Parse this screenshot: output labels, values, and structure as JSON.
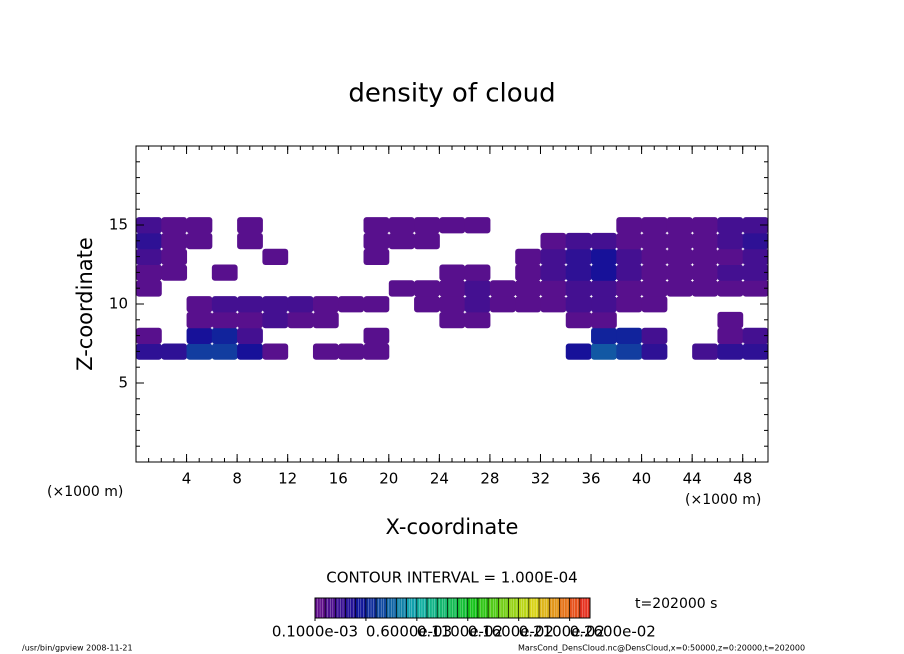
{
  "chart_data": {
    "type": "contour",
    "title": "density of cloud",
    "x_label": "X-coordinate",
    "y_label": "Z-coordinate",
    "x_unit": "(×1000 m)",
    "y_unit": "(×1000 m)",
    "contour_text": "CONTOUR INTERVAL = 1.000E-04",
    "contour_interval": 0.0001,
    "time_text": "t=202000 s",
    "footer_left": "/usr/bin/gpview  2008-11-21",
    "footer_right": "MarsCond_DensCloud.nc@DensCloud,x=0:50000,z=0:20000,t=202000",
    "xlim": [
      0,
      50
    ],
    "ylim": [
      0,
      20
    ],
    "xticks": [
      4,
      8,
      12,
      16,
      20,
      24,
      28,
      32,
      36,
      40,
      44,
      48
    ],
    "yticks": [
      5,
      10,
      15
    ],
    "clim": [
      0.0001,
      0.0028
    ],
    "cticks": [
      {
        "value": 0.0001,
        "label": "0.1000e-03"
      },
      {
        "value": 0.0006,
        "label": "0.6000e-03"
      },
      {
        "value": 0.0011,
        "label": "0.1100e-02"
      },
      {
        "value": 0.0016,
        "label": "0.1600e-02"
      },
      {
        "value": 0.0021,
        "label": "0.2100e-02"
      },
      {
        "value": 0.0026,
        "label": "0.2600e-02"
      }
    ],
    "x": [
      1,
      3,
      5,
      7,
      9,
      11,
      13,
      15,
      17,
      19,
      21,
      23,
      25,
      27,
      29,
      31,
      33,
      35,
      37,
      39,
      41,
      43,
      45,
      47,
      49
    ],
    "z": [
      7,
      8,
      9,
      10,
      11,
      12,
      13,
      14,
      15
    ],
    "values": [
      [
        0.0004,
        0.0004,
        0.0007,
        0.0007,
        0.0005,
        0.0002,
        null,
        0.0002,
        0.0002,
        0.0002,
        null,
        null,
        null,
        null,
        null,
        null,
        null,
        0.0005,
        0.0008,
        0.0007,
        0.0004,
        null,
        0.0003,
        0.0004,
        0.0004
      ],
      [
        0.0002,
        null,
        0.0005,
        0.0006,
        0.0003,
        null,
        null,
        null,
        null,
        0.0002,
        null,
        null,
        null,
        null,
        null,
        null,
        null,
        null,
        0.0006,
        0.0006,
        0.0003,
        null,
        null,
        0.0002,
        0.0003
      ],
      [
        null,
        null,
        0.0002,
        0.0002,
        0.0002,
        0.0003,
        0.0002,
        0.0002,
        null,
        null,
        null,
        null,
        0.0002,
        0.0002,
        null,
        null,
        null,
        0.0002,
        0.0002,
        null,
        null,
        null,
        null,
        0.0002,
        null
      ],
      [
        null,
        null,
        0.0002,
        0.0003,
        0.0003,
        0.0003,
        0.0003,
        0.0002,
        0.0002,
        0.0002,
        null,
        0.0002,
        0.0002,
        0.0003,
        0.0002,
        0.0002,
        0.0002,
        0.0003,
        0.0003,
        0.0002,
        0.0002,
        null,
        null,
        null,
        null
      ],
      [
        0.0002,
        null,
        null,
        null,
        null,
        null,
        null,
        null,
        null,
        null,
        0.0002,
        0.0002,
        0.0002,
        0.0003,
        0.0002,
        0.0002,
        0.0002,
        0.0003,
        0.0003,
        0.0002,
        0.0002,
        0.0002,
        0.0002,
        0.0002,
        0.0002
      ],
      [
        0.0002,
        0.0002,
        null,
        0.0002,
        null,
        null,
        null,
        null,
        null,
        null,
        null,
        null,
        0.0002,
        0.0002,
        null,
        0.0002,
        0.0003,
        0.0004,
        0.0005,
        0.0003,
        0.0002,
        0.0002,
        0.0002,
        0.0003,
        0.0003
      ],
      [
        0.0003,
        0.0002,
        null,
        null,
        null,
        0.0002,
        null,
        null,
        null,
        0.0002,
        null,
        null,
        null,
        null,
        null,
        0.0002,
        0.0003,
        0.0004,
        0.0005,
        0.0003,
        0.0002,
        0.0002,
        0.0002,
        0.0002,
        0.0003
      ],
      [
        0.0004,
        0.0002,
        0.0002,
        null,
        0.0002,
        null,
        null,
        null,
        null,
        0.0002,
        0.0002,
        0.0002,
        null,
        null,
        null,
        null,
        0.0002,
        0.0003,
        0.0003,
        0.0002,
        0.0002,
        0.0002,
        0.0002,
        0.0003,
        0.0004
      ],
      [
        0.0003,
        0.0002,
        0.0002,
        null,
        0.0002,
        null,
        null,
        null,
        null,
        0.0002,
        0.0002,
        0.0002,
        0.0002,
        0.0002,
        null,
        null,
        null,
        null,
        null,
        0.0002,
        0.0002,
        0.0002,
        0.0002,
        0.0003,
        0.0003
      ]
    ]
  }
}
